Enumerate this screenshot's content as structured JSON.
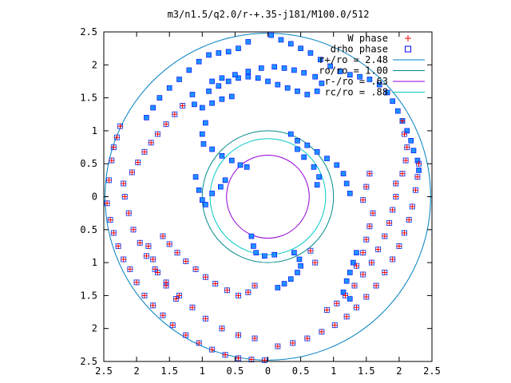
{
  "chart_data": {
    "type": "scatter",
    "title": "m3/n1.5/q2.0/r-+.35-j181/M100.0/512",
    "xlabel": "",
    "ylabel": "",
    "xlim": [
      -2.5,
      2.5
    ],
    "ylim": [
      -2.5,
      2.5
    ],
    "x_ticks": [
      "2.5",
      "2",
      "1.5",
      "1",
      "0.5",
      "0",
      "0.5",
      "1",
      "1.5",
      "2",
      "2.5"
    ],
    "y_ticks": [
      "2.5",
      "2",
      "1.5",
      "1",
      "0.5",
      "0",
      "0.5",
      "1",
      "1.5",
      "2",
      "2.5"
    ],
    "grid": false,
    "legend_position": "top-right",
    "legend": [
      {
        "label": "W phase",
        "marker": "plus",
        "color": "#ff0000"
      },
      {
        "label": "drho phase",
        "marker": "square",
        "color": "#0000ff"
      },
      {
        "label": "r+/ro = 2.48",
        "marker": "line",
        "color": "#0080c0"
      },
      {
        "label": "ro/ro = 1.00",
        "marker": "line",
        "color": "#008b8b"
      },
      {
        "label": "r-/ro =  .63",
        "marker": "line",
        "color": "#9400d3"
      },
      {
        "label": "rc/ro =  .88",
        "marker": "line",
        "color": "#00c8c8"
      }
    ],
    "circles": [
      {
        "name": "r+/ro = 2.48",
        "r": 2.48,
        "color": "#0080c0"
      },
      {
        "name": "ro/ro = 1.00",
        "r": 1.0,
        "color": "#008b8b"
      },
      {
        "name": "r-/ro =  .63",
        "r": 0.63,
        "color": "#9400d3"
      },
      {
        "name": "rc/ro =  .88",
        "r": 0.88,
        "color": "#00c8c8"
      }
    ],
    "drho_color": "#1e90ff",
    "series": [
      {
        "name": "W phase",
        "points": [
          [
            -2.25,
            1.07
          ],
          [
            -2.3,
            0.9
          ],
          [
            -2.35,
            0.75
          ],
          [
            -2.38,
            0.55
          ],
          [
            -2.42,
            0.25
          ],
          [
            -2.45,
            -0.1
          ],
          [
            -2.4,
            -0.35
          ],
          [
            -2.35,
            -0.55
          ],
          [
            -2.28,
            -0.75
          ],
          [
            -2.2,
            -0.95
          ],
          [
            -2.1,
            -1.1
          ],
          [
            -2.0,
            -1.3
          ],
          [
            -1.88,
            -1.5
          ],
          [
            -1.75,
            -1.65
          ],
          [
            -1.6,
            -1.8
          ],
          [
            -1.45,
            -1.95
          ],
          [
            -1.25,
            -2.1
          ],
          [
            -1.05,
            -2.22
          ],
          [
            -0.85,
            -2.32
          ],
          [
            -0.65,
            -2.4
          ],
          [
            -0.45,
            -2.45
          ],
          [
            -0.25,
            -2.47
          ],
          [
            -0.05,
            -2.48
          ],
          [
            -2.2,
            0.2
          ],
          [
            -2.18,
            0.0
          ],
          [
            -2.12,
            -0.25
          ],
          [
            -2.05,
            -0.5
          ],
          [
            -1.95,
            -0.7
          ],
          [
            -1.85,
            -0.9
          ],
          [
            -1.72,
            -1.1
          ],
          [
            -1.55,
            -1.3
          ],
          [
            -1.35,
            -1.5
          ],
          [
            -1.15,
            -1.68
          ],
          [
            -0.95,
            -1.85
          ],
          [
            -0.7,
            -2.0
          ],
          [
            -0.45,
            -2.1
          ],
          [
            -0.2,
            -2.15
          ],
          [
            -1.6,
            -0.6
          ],
          [
            -1.5,
            -0.72
          ],
          [
            -1.38,
            -0.85
          ],
          [
            -1.25,
            -0.98
          ],
          [
            -1.1,
            -1.1
          ],
          [
            -0.95,
            -1.22
          ],
          [
            -0.8,
            -1.32
          ],
          [
            -0.62,
            -1.42
          ],
          [
            -0.45,
            -1.5
          ],
          [
            -0.3,
            -1.45
          ],
          [
            -0.2,
            -1.35
          ],
          [
            -1.82,
            -0.75
          ],
          [
            -1.75,
            -0.95
          ],
          [
            -1.68,
            -1.15
          ],
          [
            -1.55,
            -1.35
          ],
          [
            -1.4,
            -1.55
          ],
          [
            -2.07,
            0.37
          ],
          [
            -1.98,
            0.52
          ],
          [
            -1.88,
            0.68
          ],
          [
            -1.78,
            0.82
          ],
          [
            -1.68,
            0.95
          ],
          [
            -1.55,
            1.1
          ],
          [
            -1.42,
            1.25
          ],
          [
            -1.3,
            1.38
          ],
          [
            1.95,
            0.2
          ],
          [
            1.95,
            0.0
          ],
          [
            1.9,
            -0.2
          ],
          [
            1.85,
            -0.4
          ],
          [
            1.78,
            -0.6
          ],
          [
            1.68,
            -0.8
          ],
          [
            1.58,
            -1.0
          ],
          [
            1.45,
            -1.18
          ],
          [
            1.32,
            -1.35
          ],
          [
            1.18,
            -1.5
          ],
          [
            1.05,
            -1.62
          ],
          [
            0.9,
            -1.72
          ],
          [
            2.3,
            0.5
          ],
          [
            2.28,
            0.3
          ],
          [
            2.25,
            0.1
          ],
          [
            2.2,
            -0.15
          ],
          [
            2.15,
            -0.35
          ],
          [
            2.08,
            -0.55
          ],
          [
            2.0,
            -0.75
          ],
          [
            1.9,
            -0.95
          ],
          [
            1.78,
            -1.15
          ],
          [
            1.65,
            -1.35
          ],
          [
            1.5,
            -1.52
          ],
          [
            1.35,
            -1.68
          ],
          [
            1.2,
            -1.82
          ],
          [
            1.02,
            -1.95
          ],
          [
            0.82,
            -2.05
          ],
          [
            0.6,
            -2.15
          ],
          [
            0.38,
            -2.22
          ],
          [
            0.15,
            -2.27
          ],
          [
            2.12,
            0.75
          ],
          [
            2.08,
            0.95
          ],
          [
            2.05,
            1.15
          ],
          [
            2.1,
            0.55
          ],
          [
            2.05,
            0.35
          ],
          [
            1.6,
            -0.25
          ],
          [
            1.55,
            -0.45
          ],
          [
            1.5,
            -0.65
          ],
          [
            1.45,
            -0.85
          ],
          [
            1.35,
            -1.05
          ],
          [
            0.72,
            -1.0
          ],
          [
            0.65,
            -0.82
          ],
          [
            1.55,
            0.35
          ],
          [
            1.5,
            0.15
          ],
          [
            1.45,
            -0.05
          ]
        ]
      },
      {
        "name": "drho phase",
        "points": [
          [
            0.05,
            2.45
          ],
          [
            0.2,
            2.38
          ],
          [
            0.35,
            2.32
          ],
          [
            0.5,
            2.25
          ],
          [
            0.65,
            2.18
          ],
          [
            0.8,
            2.08
          ],
          [
            0.95,
            1.98
          ],
          [
            1.1,
            1.9
          ],
          [
            1.25,
            1.85
          ],
          [
            1.4,
            1.82
          ],
          [
            1.55,
            1.78
          ],
          [
            1.7,
            1.7
          ],
          [
            1.82,
            1.58
          ],
          [
            1.9,
            1.45
          ],
          [
            1.98,
            1.3
          ],
          [
            2.05,
            1.15
          ],
          [
            2.12,
            1.0
          ],
          [
            2.18,
            0.85
          ],
          [
            2.22,
            0.7
          ],
          [
            2.28,
            0.55
          ],
          [
            2.3,
            0.4
          ],
          [
            -0.3,
            2.35
          ],
          [
            -0.45,
            2.25
          ],
          [
            -0.6,
            2.2
          ],
          [
            -0.75,
            2.18
          ],
          [
            -0.9,
            2.15
          ],
          [
            -1.05,
            2.05
          ],
          [
            -1.2,
            1.92
          ],
          [
            -1.35,
            1.78
          ],
          [
            -1.5,
            1.65
          ],
          [
            -1.65,
            1.5
          ],
          [
            -1.75,
            1.35
          ],
          [
            -1.85,
            1.2
          ],
          [
            -0.9,
            1.6
          ],
          [
            -0.75,
            1.68
          ],
          [
            -0.6,
            1.75
          ],
          [
            -0.45,
            1.8
          ],
          [
            -0.3,
            1.82
          ],
          [
            -0.15,
            1.8
          ],
          [
            0.0,
            1.75
          ],
          [
            0.15,
            1.7
          ],
          [
            0.3,
            1.65
          ],
          [
            0.45,
            1.6
          ],
          [
            0.6,
            1.55
          ],
          [
            0.75,
            1.6
          ],
          [
            0.82,
            1.72
          ],
          [
            0.72,
            1.82
          ],
          [
            0.55,
            1.88
          ],
          [
            0.4,
            1.92
          ],
          [
            0.25,
            1.95
          ],
          [
            0.1,
            1.97
          ],
          [
            -0.1,
            1.95
          ],
          [
            -0.3,
            1.9
          ],
          [
            -0.5,
            1.85
          ],
          [
            -0.7,
            1.8
          ],
          [
            -0.85,
            1.75
          ],
          [
            -1.15,
            1.55
          ],
          [
            -1.12,
            1.4
          ],
          [
            -1.0,
            1.35
          ],
          [
            -0.85,
            1.42
          ],
          [
            -0.7,
            1.48
          ],
          [
            -0.55,
            1.52
          ],
          [
            -0.95,
            1.12
          ],
          [
            -1.0,
            0.95
          ],
          [
            -0.98,
            0.8
          ],
          [
            -0.85,
            0.72
          ],
          [
            -0.7,
            0.62
          ],
          [
            -0.55,
            0.55
          ],
          [
            -0.42,
            0.48
          ],
          [
            -0.32,
            0.45
          ],
          [
            -1.1,
            0.3
          ],
          [
            -1.05,
            0.1
          ],
          [
            -1.0,
            -0.05
          ],
          [
            -0.95,
            -0.12
          ],
          [
            -0.85,
            0.05
          ],
          [
            -0.72,
            0.15
          ],
          [
            -0.65,
            0.25
          ],
          [
            0.35,
            0.95
          ],
          [
            0.45,
            0.85
          ],
          [
            0.6,
            0.78
          ],
          [
            0.75,
            0.68
          ],
          [
            0.9,
            0.58
          ],
          [
            1.05,
            0.48
          ],
          [
            1.15,
            0.35
          ],
          [
            1.2,
            0.2
          ],
          [
            1.25,
            0.05
          ],
          [
            0.45,
            0.72
          ],
          [
            0.55,
            0.6
          ],
          [
            0.7,
            0.45
          ],
          [
            0.78,
            0.3
          ],
          [
            0.75,
            0.18
          ],
          [
            0.4,
            -0.85
          ],
          [
            0.48,
            -0.95
          ],
          [
            0.5,
            -1.05
          ],
          [
            0.45,
            -1.15
          ],
          [
            0.35,
            -1.25
          ],
          [
            0.25,
            -1.32
          ],
          [
            0.15,
            -1.38
          ],
          [
            -0.25,
            -0.6
          ],
          [
            -0.22,
            -0.75
          ],
          [
            -0.18,
            -0.85
          ],
          [
            -0.05,
            -0.9
          ],
          [
            0.1,
            -0.88
          ],
          [
            1.35,
            -0.85
          ],
          [
            1.3,
            -1.0
          ],
          [
            1.25,
            -1.15
          ],
          [
            1.2,
            -1.28
          ],
          [
            1.15,
            -1.45
          ],
          [
            1.25,
            -1.55
          ]
        ]
      }
    ]
  }
}
